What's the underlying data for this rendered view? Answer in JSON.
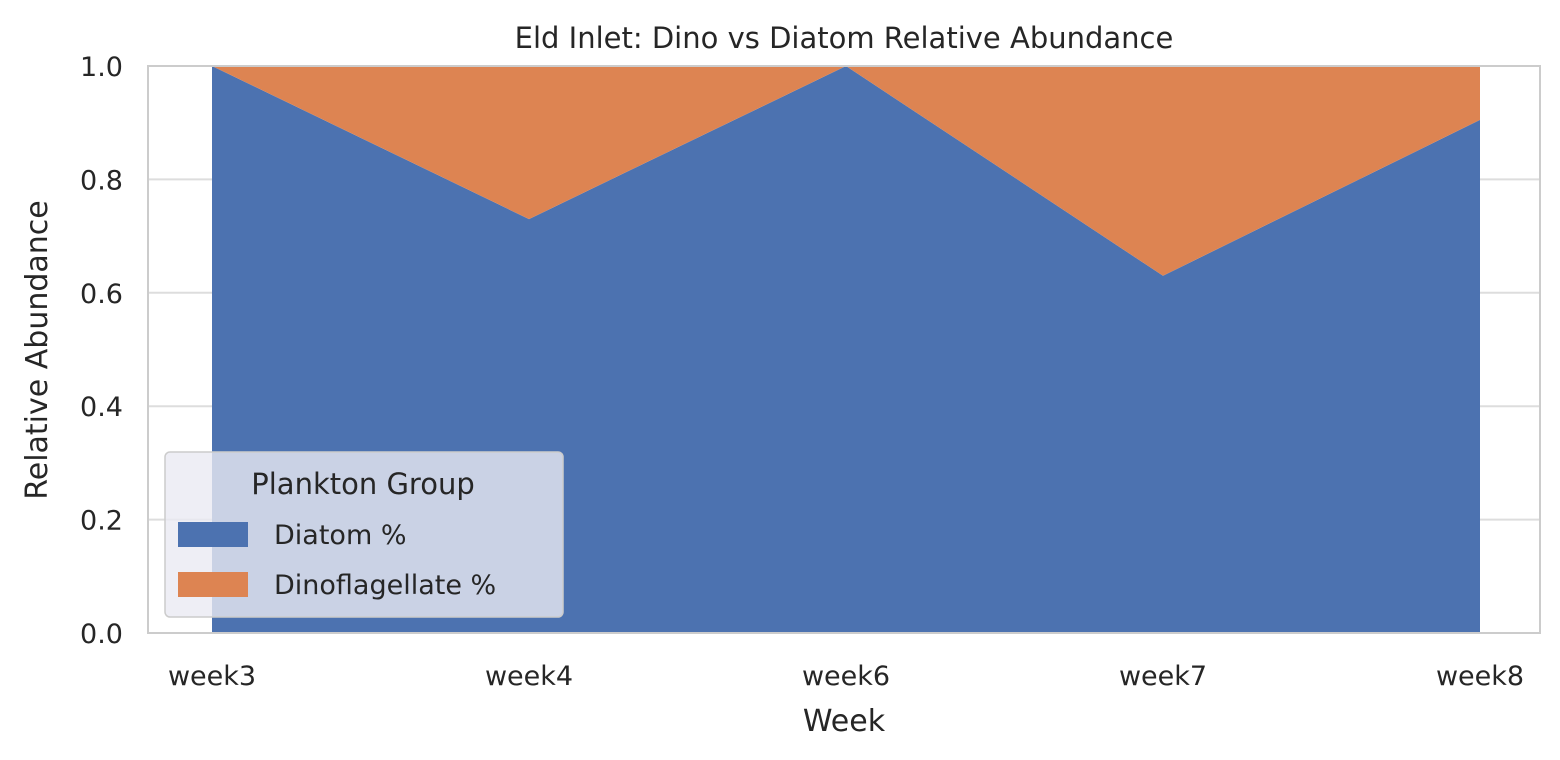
{
  "chart_data": {
    "type": "area",
    "stacked": true,
    "title": "Eld Inlet: Dino vs Diatom Relative Abundance",
    "xlabel": "Week",
    "ylabel": "Relative Abundance",
    "categories": [
      "week3",
      "week4",
      "week6",
      "week7",
      "week8"
    ],
    "ylim": [
      0,
      1.0
    ],
    "yticks": [
      0.0,
      0.2,
      0.4,
      0.6,
      0.8,
      1.0
    ],
    "ytick_labels": [
      "0.0",
      "0.2",
      "0.4",
      "0.6",
      "0.8",
      "1.0"
    ],
    "grid": true,
    "series": [
      {
        "name": "Diatom %",
        "color": "#4c72b0",
        "values": [
          1.0,
          0.73,
          1.0,
          0.63,
          0.905
        ]
      },
      {
        "name": "Dinoflagellate %",
        "color": "#dd8452",
        "values": [
          0.0,
          0.27,
          0.0,
          0.37,
          0.095
        ]
      }
    ],
    "legend": {
      "title": "Plankton Group",
      "position": "lower-left"
    }
  }
}
